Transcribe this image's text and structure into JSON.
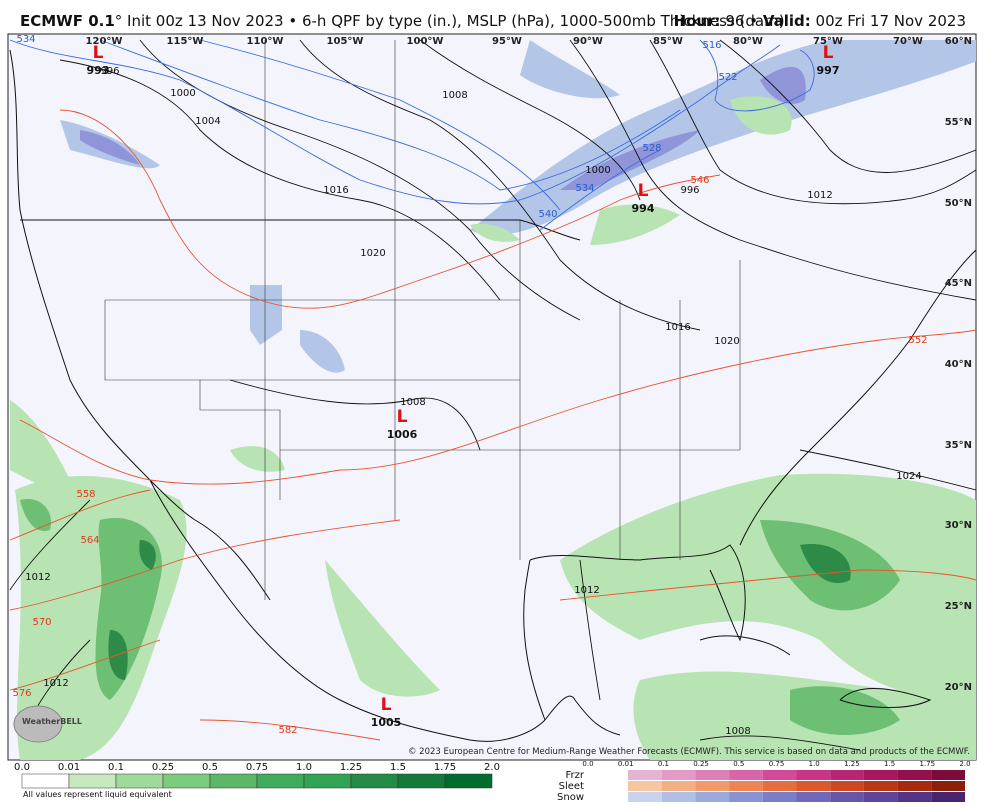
{
  "header": {
    "model": "ECMWF 0.1",
    "init": "° Init 00z 13 Nov 2023 • 6-h QPF by type (in.), MSLP (hPa), 1000-500mb Thickness (dam)",
    "hour_label": "Hour:",
    "hour": "96",
    "separator": "•",
    "valid_label": "Valid:",
    "valid": "00z Fri 17 Nov 2023"
  },
  "map": {
    "longitudes": [
      "120°W",
      "115°W",
      "110°W",
      "105°W",
      "100°W",
      "95°W",
      "90°W",
      "85°W",
      "80°W",
      "75°W",
      "70°W"
    ],
    "latitudes": [
      "60°N",
      "55°N",
      "50°N",
      "45°N",
      "40°N",
      "35°N",
      "30°N",
      "25°N",
      "20°N"
    ],
    "lows": [
      {
        "symbol": "L",
        "pressure": "993"
      },
      {
        "symbol": "L",
        "pressure": "997"
      },
      {
        "symbol": "L",
        "pressure": "994"
      },
      {
        "symbol": "L",
        "pressure": "1006"
      },
      {
        "symbol": "L",
        "pressure": "1005"
      }
    ],
    "isobar_labels": [
      "996",
      "1000",
      "1004",
      "1008",
      "1016",
      "1020",
      "1000",
      "996",
      "1012",
      "1016",
      "1020",
      "1008",
      "1024",
      "1012",
      "1012",
      "1012",
      "1008"
    ],
    "thickness_labels_warm": [
      "546",
      "552",
      "558",
      "564",
      "570",
      "576",
      "582"
    ],
    "thickness_labels_cold": [
      "534",
      "516",
      "522",
      "528",
      "534",
      "540"
    ]
  },
  "legend": {
    "qpf_ticks": [
      "0.0",
      "0.01",
      "0.1",
      "0.25",
      "0.5",
      "0.75",
      "1.0",
      "1.25",
      "1.5",
      "1.75",
      "2.0"
    ],
    "note": "All values represent liquid equivalent",
    "types": [
      "Frzr",
      "Sleet",
      "Snow"
    ],
    "type_ticks": [
      "0.0",
      "0.01",
      "0.1",
      "0.25",
      "0.5",
      "0.75",
      "1.0",
      "1.25",
      "1.5",
      "1.75",
      "2.0"
    ]
  },
  "footer": {
    "copyright": "© 2023 European Centre for Medium-Range Weather Forecasts (ECMWF). This service is based on data and products of the ECMWF.",
    "logo": "WeatherBELL"
  }
}
